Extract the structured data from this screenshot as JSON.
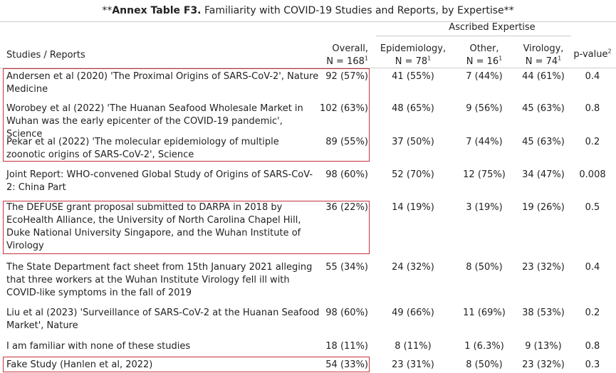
{
  "title": {
    "prefix": "**",
    "bold": "Annex Table F3.",
    "rest": " Familiarity with COVID-19 Studies and Reports, by Expertise**"
  },
  "header": {
    "spanner": "Ascribed Expertise",
    "studies": "Studies / Reports",
    "overall": {
      "line1": "Overall,",
      "line2": "N = 168",
      "sup": "1"
    },
    "epidemiology": {
      "line1": "Epidemiology,",
      "line2": "N = 78",
      "sup": "1"
    },
    "other": {
      "line1": "Other,",
      "line2": "N = 16",
      "sup": "1"
    },
    "virology": {
      "line1": "Virology,",
      "line2": "N = 74",
      "sup": "1"
    },
    "pvalue": {
      "text": "p-value",
      "sup": "2"
    }
  },
  "rows": [
    {
      "label": "Andersen et al (2020) 'The Proximal Origins of SARS-CoV-2', Nature Medicine",
      "overall": "92 (57%)",
      "epidemiology": "41 (55%)",
      "other": "7 (44%)",
      "virology": "44 (61%)",
      "p": "0.4"
    },
    {
      "label": "Worobey et al (2022) 'The Huanan Seafood Wholesale Market in Wuhan was the early epicenter of the COVID-19 pandemic', Science",
      "overall": "102 (63%)",
      "epidemiology": "48 (65%)",
      "other": "9 (56%)",
      "virology": "45 (63%)",
      "p": "0.8"
    },
    {
      "label": "Pekar et al (2022) 'The molecular epidemiology of multiple zoonotic origins of SARS-CoV-2', Science",
      "overall": "89 (55%)",
      "epidemiology": "37 (50%)",
      "other": "7 (44%)",
      "virology": "45 (63%)",
      "p": "0.2"
    },
    {
      "label": "Joint Report: WHO-convened Global Study of Origins of SARS-CoV-2: China Part",
      "overall": "98 (60%)",
      "epidemiology": "52 (70%)",
      "other": "12 (75%)",
      "virology": "34 (47%)",
      "p": "0.008"
    },
    {
      "label": "The DEFUSE grant proposal submitted to DARPA in 2018 by EcoHealth Alliance, the University of North Carolina Chapel Hill, Duke National University Singapore, and the Wuhan Institute of Virology",
      "overall": "36 (22%)",
      "epidemiology": "14 (19%)",
      "other": "3 (19%)",
      "virology": "19 (26%)",
      "p": "0.5"
    },
    {
      "label": "The State Department fact sheet from 15th January 2021 alleging that three workers at the Wuhan Institute Virology fell ill with COVID-like symptoms in the fall of 2019",
      "overall": "55 (34%)",
      "epidemiology": "24 (32%)",
      "other": "8 (50%)",
      "virology": "23 (32%)",
      "p": "0.4"
    },
    {
      "label": "Liu et al (2023) 'Surveillance of SARS-CoV-2 at the Huanan Seafood Market', Nature",
      "overall": "98 (60%)",
      "epidemiology": "49 (66%)",
      "other": "11 (69%)",
      "virology": "38 (53%)",
      "p": "0.2"
    },
    {
      "label": "I am familiar with none of these studies",
      "overall": "18 (11%)",
      "epidemiology": "8 (11%)",
      "other": "1 (6.3%)",
      "virology": "9 (13%)",
      "p": "0.8"
    },
    {
      "label": "Fake Study (Hanlen et al, 2022)",
      "overall": "54 (33%)",
      "epidemiology": "23 (31%)",
      "other": "8 (50%)",
      "virology": "23 (32%)",
      "p": "0.3"
    }
  ],
  "highlight_color": "#c8323c"
}
